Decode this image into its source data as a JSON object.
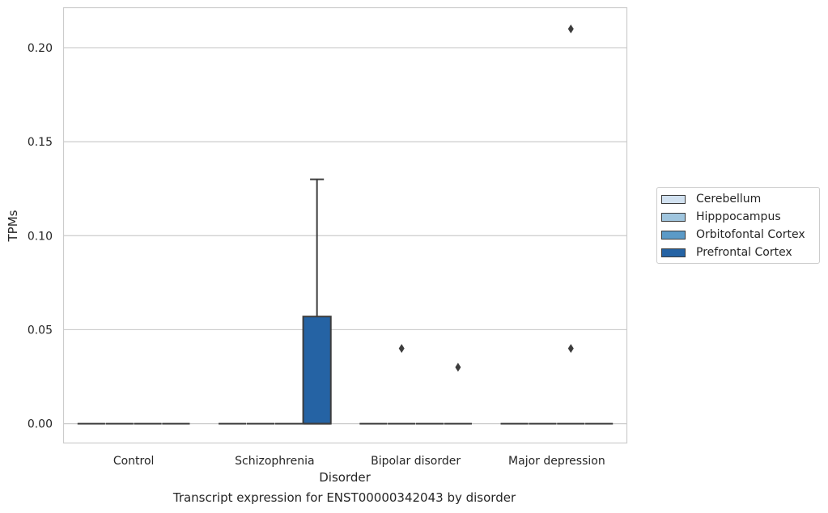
{
  "chart_data": {
    "type": "box",
    "caption": "Transcript expression for ENST00000342043 by disorder",
    "xlabel": "Disorder",
    "ylabel": "TPMs",
    "ylim": [
      -0.0105,
      0.2215
    ],
    "yticks": [
      "0.00",
      "0.05",
      "0.10",
      "0.15",
      "0.20"
    ],
    "ytick_values": [
      0,
      0.05,
      0.1,
      0.15,
      0.2
    ],
    "grid": "horizontal",
    "legend_position": "right",
    "categories": [
      "Control",
      "Schizophrenia",
      "Bipolar disorder",
      "Major depression"
    ],
    "series": [
      {
        "name": "Cerebellum",
        "color": "#d1e1f0",
        "boxes": [
          {
            "q1": 0,
            "median": 0,
            "q3": 0,
            "whisker_low": 0,
            "whisker_high": 0,
            "outliers": []
          },
          {
            "q1": 0,
            "median": 0,
            "q3": 0,
            "whisker_low": 0,
            "whisker_high": 0,
            "outliers": []
          },
          {
            "q1": 0,
            "median": 0,
            "q3": 0,
            "whisker_low": 0,
            "whisker_high": 0,
            "outliers": []
          },
          {
            "q1": 0,
            "median": 0,
            "q3": 0,
            "whisker_low": 0,
            "whisker_high": 0,
            "outliers": []
          }
        ]
      },
      {
        "name": "Hipppocampus",
        "color": "#9fc5de",
        "boxes": [
          {
            "q1": 0,
            "median": 0,
            "q3": 0,
            "whisker_low": 0,
            "whisker_high": 0,
            "outliers": []
          },
          {
            "q1": 0,
            "median": 0,
            "q3": 0,
            "whisker_low": 0,
            "whisker_high": 0,
            "outliers": []
          },
          {
            "q1": 0,
            "median": 0,
            "q3": 0,
            "whisker_low": 0,
            "whisker_high": 0,
            "outliers": [
              0.04
            ]
          },
          {
            "q1": 0,
            "median": 0,
            "q3": 0,
            "whisker_low": 0,
            "whisker_high": 0,
            "outliers": []
          }
        ]
      },
      {
        "name": "Orbitofontal Cortex",
        "color": "#5b9ac7",
        "boxes": [
          {
            "q1": 0,
            "median": 0,
            "q3": 0,
            "whisker_low": 0,
            "whisker_high": 0,
            "outliers": []
          },
          {
            "q1": 0,
            "median": 0,
            "q3": 0,
            "whisker_low": 0,
            "whisker_high": 0,
            "outliers": []
          },
          {
            "q1": 0,
            "median": 0,
            "q3": 0,
            "whisker_low": 0,
            "whisker_high": 0,
            "outliers": []
          },
          {
            "q1": 0,
            "median": 0,
            "q3": 0,
            "whisker_low": 0,
            "whisker_high": 0,
            "outliers": [
              0.21,
              0.04
            ]
          }
        ]
      },
      {
        "name": "Prefrontal Cortex",
        "color": "#2563a4",
        "boxes": [
          {
            "q1": 0,
            "median": 0,
            "q3": 0,
            "whisker_low": 0,
            "whisker_high": 0,
            "outliers": []
          },
          {
            "q1": 0,
            "median": 0,
            "q3": 0.057,
            "whisker_low": 0,
            "whisker_high": 0.13,
            "outliers": []
          },
          {
            "q1": 0,
            "median": 0,
            "q3": 0,
            "whisker_low": 0,
            "whisker_high": 0,
            "outliers": [
              0.03
            ]
          },
          {
            "q1": 0,
            "median": 0,
            "q3": 0,
            "whisker_low": 0,
            "whisker_high": 0,
            "outliers": []
          }
        ]
      }
    ]
  }
}
